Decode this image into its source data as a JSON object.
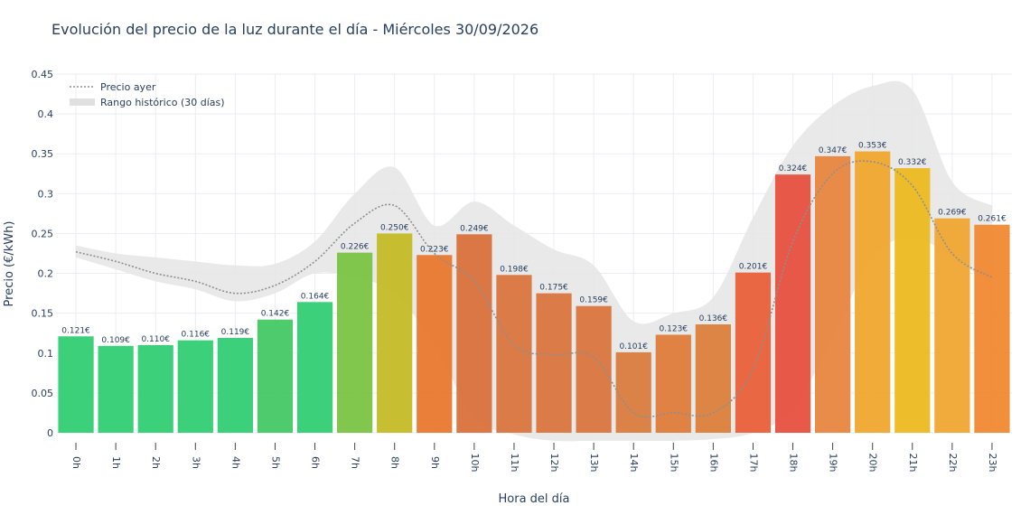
{
  "chart_data": {
    "type": "bar",
    "title": "Evolución del precio de la luz durante el día - Miércoles 30/09/2026",
    "xlabel": "Hora del día",
    "ylabel": "Precio (€/kWh)",
    "ylim": [
      0,
      0.45
    ],
    "yticks": [
      0,
      0.05,
      0.1,
      0.15,
      0.2,
      0.25,
      0.3,
      0.35,
      0.4,
      0.45
    ],
    "ytick_labels": [
      "0",
      "0.05",
      "0.1",
      "0.15",
      "0.2",
      "0.25",
      "0.3",
      "0.35",
      "0.4",
      "0.45"
    ],
    "grid": true,
    "legend_position": "top-left",
    "categories": [
      "0h",
      "1h",
      "2h",
      "3h",
      "4h",
      "5h",
      "6h",
      "7h",
      "8h",
      "9h",
      "10h",
      "11h",
      "12h",
      "13h",
      "14h",
      "15h",
      "16h",
      "17h",
      "18h",
      "19h",
      "20h",
      "21h",
      "22h",
      "23h"
    ],
    "series": [
      {
        "type": "bar",
        "values": [
          0.121,
          0.109,
          0.11,
          0.116,
          0.119,
          0.142,
          0.164,
          0.226,
          0.25,
          0.223,
          0.249,
          0.198,
          0.175,
          0.159,
          0.101,
          0.123,
          0.136,
          0.201,
          0.324,
          0.347,
          0.353,
          0.332,
          0.269,
          0.261
        ],
        "labels": [
          "0.121€",
          "0.109€",
          "0.110€",
          "0.116€",
          "0.119€",
          "0.142€",
          "0.164€",
          "0.226€",
          "0.250€",
          "0.223€",
          "0.249€",
          "0.198€",
          "0.175€",
          "0.159€",
          "0.101€",
          "0.123€",
          "0.136€",
          "0.201€",
          "0.324€",
          "0.347€",
          "0.353€",
          "0.332€",
          "0.269€",
          "0.261€"
        ],
        "colors": [
          "#2ecc71",
          "#2ecc71",
          "#2ecc71",
          "#2ecc71",
          "#2ecc71",
          "#40c762",
          "#2ecc71",
          "#77c33f",
          "#c4b922",
          "#e8752a",
          "#d96e38",
          "#d9733b",
          "#d9733b",
          "#d9733b",
          "#d97a3b",
          "#de7a36",
          "#db7d38",
          "#e85d36",
          "#e74c3c",
          "#e8833b",
          "#f0a529",
          "#edb81c",
          "#f0a52e",
          "#f0862e"
        ]
      },
      {
        "name": "Precio ayer",
        "type": "line",
        "style": "dotted",
        "color": "#8e8e8e",
        "values": [
          0.227,
          0.215,
          0.2,
          0.19,
          0.175,
          0.185,
          0.215,
          0.263,
          0.285,
          0.225,
          0.19,
          0.11,
          0.098,
          0.095,
          0.025,
          0.025,
          0.025,
          0.08,
          0.24,
          0.325,
          0.34,
          0.31,
          0.225,
          0.195
        ]
      },
      {
        "name": "Rango histórico (30 días)",
        "type": "area-band",
        "color": "#e5e5e5",
        "upper": [
          0.235,
          0.225,
          0.22,
          0.215,
          0.21,
          0.212,
          0.24,
          0.3,
          0.333,
          0.26,
          0.29,
          0.26,
          0.23,
          0.21,
          0.14,
          0.15,
          0.17,
          0.27,
          0.36,
          0.41,
          0.435,
          0.43,
          0.315,
          0.285
        ],
        "lower": [
          0.22,
          0.205,
          0.19,
          0.18,
          0.165,
          0.175,
          0.2,
          0.195,
          0.175,
          0.11,
          0.02,
          -0.002,
          -0.01,
          -0.01,
          -0.01,
          -0.01,
          -0.008,
          0.0,
          0.03,
          0.12,
          0.22,
          0.245,
          0.22,
          0.185
        ]
      }
    ]
  }
}
